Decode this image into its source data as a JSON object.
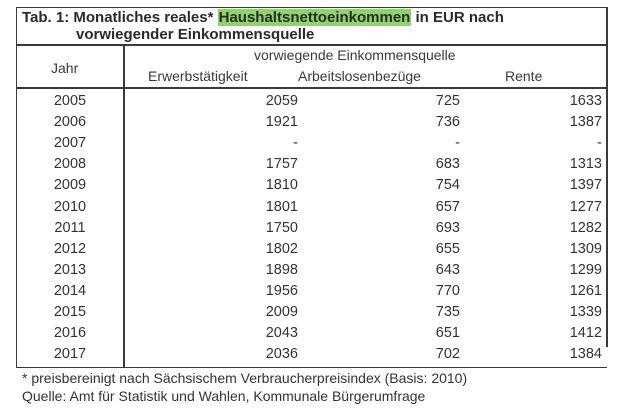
{
  "table": {
    "title_prefix": "Tab. 1: Monatliches reales* ",
    "title_highlight": "Haushaltsnettoeinkommen",
    "title_suffix": " in EUR nach",
    "title_line2": "vorwiegender Einkommensquelle",
    "highlight_color": "#8fd46a",
    "header": {
      "year": "Jahr",
      "group": "vorwiegende Einkommensquelle",
      "columns": [
        "Erwerbstätigkeit",
        "Arbeitslosenbezüge",
        "Rente"
      ]
    },
    "rows": [
      {
        "year": "2005",
        "erw": "2059",
        "arb": "725",
        "ren": "1633"
      },
      {
        "year": "2006",
        "erw": "1921",
        "arb": "736",
        "ren": "1387"
      },
      {
        "year": "2007",
        "erw": "-",
        "arb": "-",
        "ren": "-"
      },
      {
        "year": "2008",
        "erw": "1757",
        "arb": "683",
        "ren": "1313"
      },
      {
        "year": "2009",
        "erw": "1810",
        "arb": "754",
        "ren": "1397"
      },
      {
        "year": "2010",
        "erw": "1801",
        "arb": "657",
        "ren": "1277"
      },
      {
        "year": "2011",
        "erw": "1750",
        "arb": "693",
        "ren": "1282"
      },
      {
        "year": "2012",
        "erw": "1802",
        "arb": "655",
        "ren": "1309"
      },
      {
        "year": "2013",
        "erw": "1898",
        "arb": "643",
        "ren": "1299"
      },
      {
        "year": "2014",
        "erw": "1956",
        "arb": "770",
        "ren": "1261"
      },
      {
        "year": "2015",
        "erw": "2009",
        "arb": "735",
        "ren": "1339"
      },
      {
        "year": "2016",
        "erw": "2043",
        "arb": "651",
        "ren": "1412"
      },
      {
        "year": "2017",
        "erw": "2036",
        "arb": "702",
        "ren": "1384"
      }
    ]
  },
  "footnotes": {
    "note": "* preisbereinigt nach Sächsischem Verbraucherpreisindex (Basis: 2010)",
    "source": "Quelle: Amt für Statistik und Wahlen, Kommunale Bürgerumfrage"
  }
}
